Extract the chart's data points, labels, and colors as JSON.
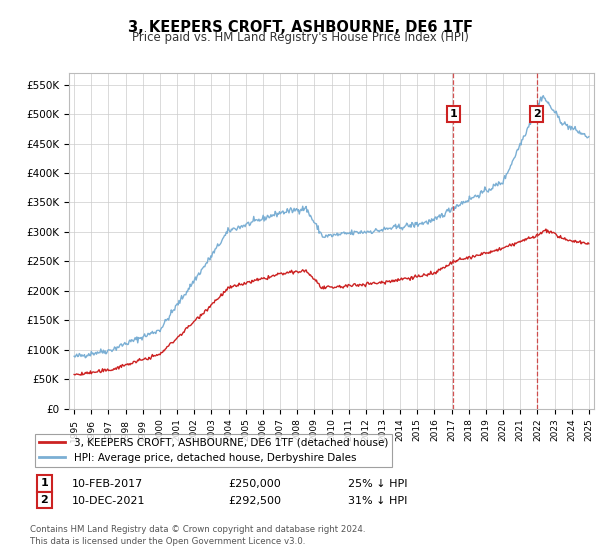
{
  "title": "3, KEEPERS CROFT, ASHBOURNE, DE6 1TF",
  "subtitle": "Price paid vs. HM Land Registry's House Price Index (HPI)",
  "ylim": [
    0,
    570000
  ],
  "yticks": [
    0,
    50000,
    100000,
    150000,
    200000,
    250000,
    300000,
    350000,
    400000,
    450000,
    500000,
    550000
  ],
  "ytick_labels": [
    "£0",
    "£50K",
    "£100K",
    "£150K",
    "£200K",
    "£250K",
    "£300K",
    "£350K",
    "£400K",
    "£450K",
    "£500K",
    "£550K"
  ],
  "hpi_color": "#7bafd4",
  "price_color": "#cc2222",
  "dashed_line_color": "#cc3333",
  "marker1_year": 2017.1,
  "marker2_year": 2021.95,
  "sale1_label": "1",
  "sale1_date": "10-FEB-2017",
  "sale1_price": "£250,000",
  "sale1_pct": "25% ↓ HPI",
  "sale2_label": "2",
  "sale2_date": "10-DEC-2021",
  "sale2_price": "£292,500",
  "sale2_pct": "31% ↓ HPI",
  "legend_label1": "3, KEEPERS CROFT, ASHBOURNE, DE6 1TF (detached house)",
  "legend_label2": "HPI: Average price, detached house, Derbyshire Dales",
  "footnote": "Contains HM Land Registry data © Crown copyright and database right 2024.\nThis data is licensed under the Open Government Licence v3.0.",
  "background_color": "#ffffff",
  "grid_color": "#cccccc"
}
